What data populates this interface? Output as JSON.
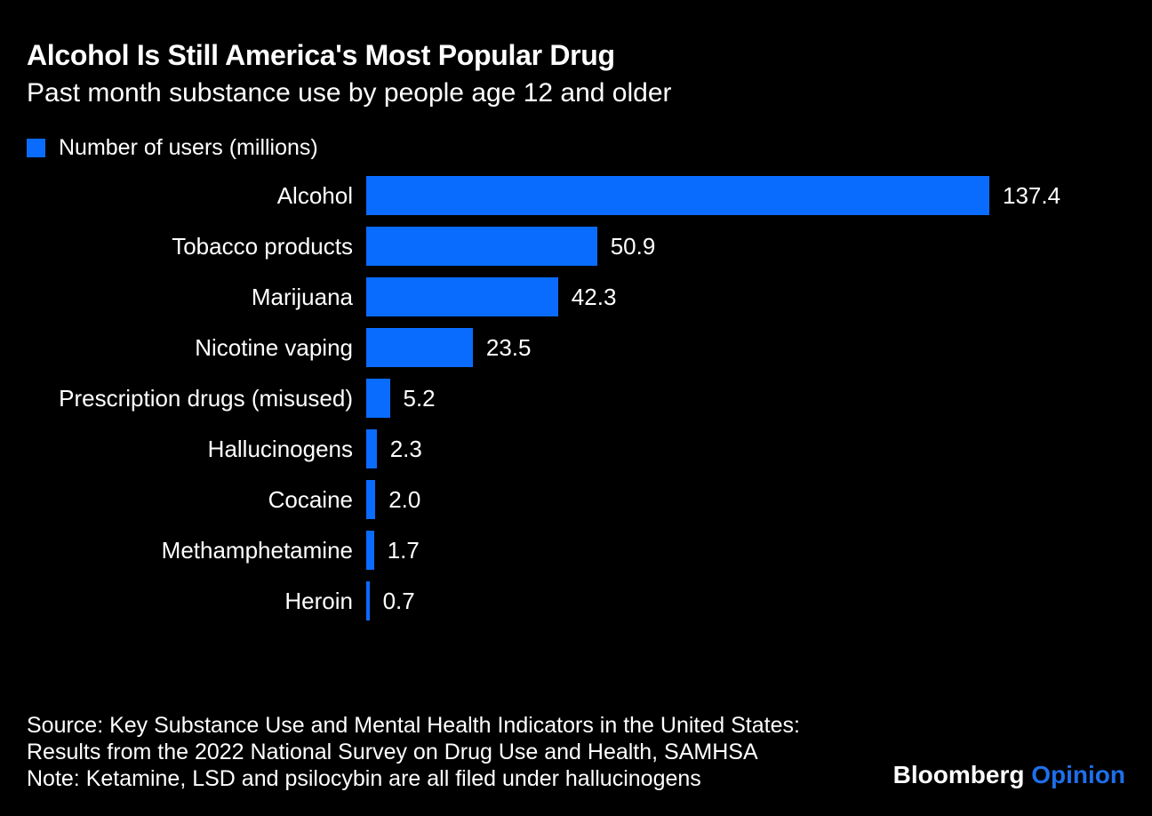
{
  "colors": {
    "background": "#000000",
    "text": "#ffffff",
    "bar_blue": "#0a6cff",
    "opinion_blue": "#1e6feb"
  },
  "header": {
    "title": "Alcohol Is Still America's Most Popular Drug",
    "subtitle": "Past month substance use by people age 12 and older"
  },
  "legend": {
    "label": "Number of users (millions)",
    "swatch_color": "#0a6cff"
  },
  "chart_data": {
    "type": "bar",
    "orientation": "horizontal",
    "title": "Alcohol Is Still America's Most Popular Drug",
    "subtitle": "Past month substance use by people age 12 and older",
    "legend_entries": [
      "Number of users (millions)"
    ],
    "legend_position": "top-left",
    "grid": false,
    "categories": [
      "Alcohol",
      "Tobacco products",
      "Marijuana",
      "Nicotine vaping",
      "Prescription drugs (misused)",
      "Hallucinogens",
      "Cocaine",
      "Methamphetamine",
      "Heroin"
    ],
    "values": [
      137.4,
      50.9,
      42.3,
      23.5,
      5.2,
      2.3,
      2.0,
      1.7,
      0.7
    ],
    "value_labels": [
      "137.4",
      "50.9",
      "42.3",
      "23.5",
      "5.2",
      "2.3",
      "2.0",
      "1.7",
      "0.7"
    ],
    "xlabel": "",
    "ylabel": "",
    "xlim": [
      0,
      137.4
    ],
    "bar_color": "#0a6cff"
  },
  "footer": {
    "source_line1": "Source: Key Substance Use and Mental Health Indicators in the United States:",
    "source_line2": "Results from the 2022 National Survey on Drug Use and Health, SAMHSA",
    "note_line": "Note: Ketamine, LSD and psilocybin are all filed under hallucinogens",
    "brand": "Bloomberg",
    "brand_suffix": "Opinion"
  }
}
